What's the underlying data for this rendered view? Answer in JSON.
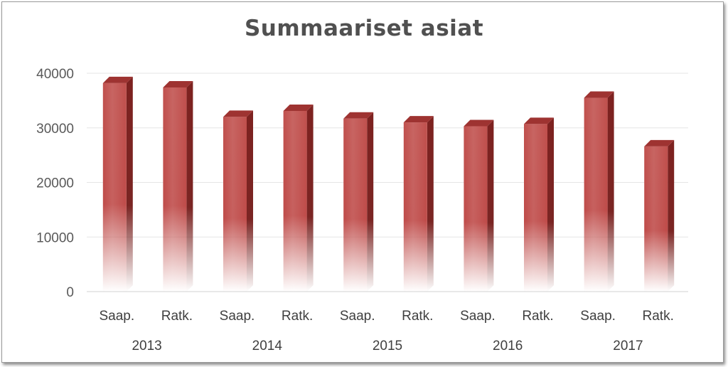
{
  "chart_data": {
    "type": "bar",
    "title": "Summaariset asiat",
    "categories": [
      {
        "label": "Saap.",
        "group": "2013"
      },
      {
        "label": "Ratk.",
        "group": "2013"
      },
      {
        "label": "Saap.",
        "group": "2014"
      },
      {
        "label": "Ratk.",
        "group": "2014"
      },
      {
        "label": "Saap.",
        "group": "2015"
      },
      {
        "label": "Ratk.",
        "group": "2015"
      },
      {
        "label": "Saap.",
        "group": "2016"
      },
      {
        "label": "Ratk.",
        "group": "2016"
      },
      {
        "label": "Saap.",
        "group": "2017"
      },
      {
        "label": "Ratk.",
        "group": "2017"
      }
    ],
    "groups": [
      "2013",
      "2014",
      "2015",
      "2016",
      "2017"
    ],
    "values": [
      38200,
      37400,
      32000,
      33100,
      31700,
      31000,
      30300,
      30700,
      35500,
      26600
    ],
    "ylim": [
      0,
      40000
    ],
    "yticks": [
      "0",
      "10000",
      "20000",
      "30000",
      "40000"
    ],
    "grid": true,
    "bar_color": "#c0504d"
  }
}
